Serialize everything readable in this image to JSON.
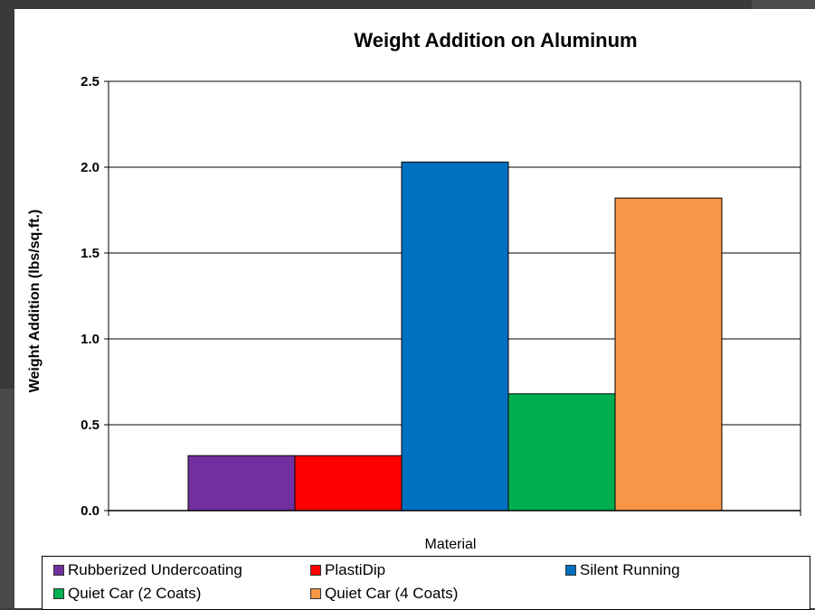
{
  "chart_data": {
    "type": "bar",
    "title": "Weight Addition on Aluminum",
    "xlabel": "Material",
    "ylabel": "Weight Addition (lbs/sq.ft.)",
    "ylim": [
      0,
      2.5
    ],
    "yticks": [
      "0.0",
      "0.5",
      "1.0",
      "1.5",
      "2.0",
      "2.5"
    ],
    "grid": true,
    "legend_position": "bottom",
    "series": [
      {
        "name": "Rubberized Undercoating",
        "values": [
          0.32
        ],
        "color": "#7030a0"
      },
      {
        "name": "PlastiDip",
        "values": [
          0.32
        ],
        "color": "#ff0000"
      },
      {
        "name": "Silent Running",
        "values": [
          2.03
        ],
        "color": "#0070c0"
      },
      {
        "name": "Quiet Car (2 Coats)",
        "values": [
          0.68
        ],
        "color": "#00b050"
      },
      {
        "name": "Quiet Car (4 Coats)",
        "values": [
          1.82
        ],
        "color": "#f79646"
      }
    ]
  }
}
